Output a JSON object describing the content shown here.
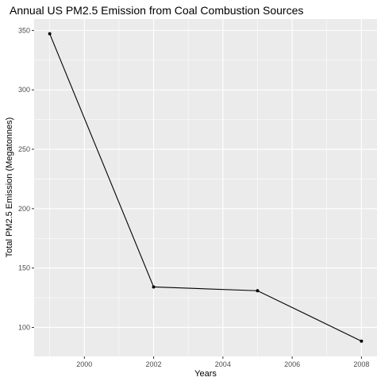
{
  "chart_data": {
    "type": "line",
    "title": "Annual US PM2.5 Emission from Coal Combustion Sources",
    "xlabel": "Years",
    "ylabel": "Total PM2.5 Emission (Megatonnes)",
    "x": [
      1999,
      2002,
      2005,
      2008
    ],
    "series": [
      {
        "values": [
          347.2,
          134.1,
          130.9,
          88.5
        ]
      }
    ],
    "xlim": [
      1998.55,
      2008.45
    ],
    "ylim": [
      75.6,
      359.6
    ],
    "x_ticks": [
      2000,
      2002,
      2004,
      2006,
      2008
    ],
    "y_ticks": [
      100,
      150,
      200,
      250,
      300,
      350
    ],
    "grid": true,
    "legend": "none",
    "colors": {
      "panel": "#EBEBEB",
      "grid": "#FFFFFF",
      "line": "#000000",
      "axis_text": "#4D4D4D",
      "text": "#000000"
    }
  }
}
